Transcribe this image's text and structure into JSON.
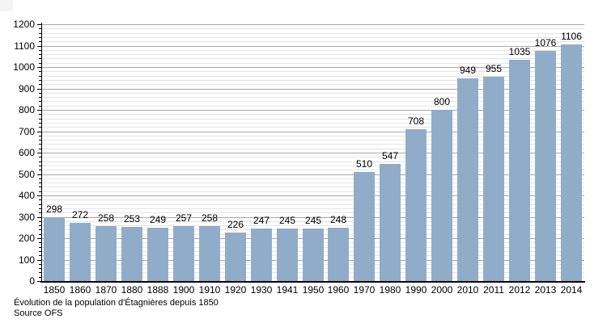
{
  "chart_data": {
    "type": "bar",
    "title": "Évolution de la population d'Étagnières depuis 1850",
    "source": "Source OFS",
    "categories": [
      "1850",
      "1860",
      "1870",
      "1880",
      "1888",
      "1900",
      "1910",
      "1920",
      "1930",
      "1941",
      "1950",
      "1960",
      "1970",
      "1980",
      "1990",
      "2000",
      "2010",
      "2011",
      "2012",
      "2013",
      "2014"
    ],
    "values": [
      298,
      272,
      258,
      253,
      249,
      257,
      258,
      226,
      247,
      245,
      245,
      248,
      510,
      547,
      708,
      800,
      949,
      955,
      1035,
      1076,
      1106
    ],
    "xlabel": "",
    "ylabel": "",
    "ylim": [
      0,
      1200
    ],
    "y_major_step": 100,
    "y_minor_step": 20,
    "grid": "horizontal-only",
    "legend": false,
    "value_labels": true,
    "bar_color": "#91ACC9",
    "major_grid_color": "#a8a8a8",
    "minor_grid_color": "#e4e4e4",
    "axis_color": "#000000",
    "text_color": "#000000"
  },
  "caption": {
    "line1": "Évolution de la population d'Étagnières depuis 1850",
    "line2": "Source OFS"
  }
}
